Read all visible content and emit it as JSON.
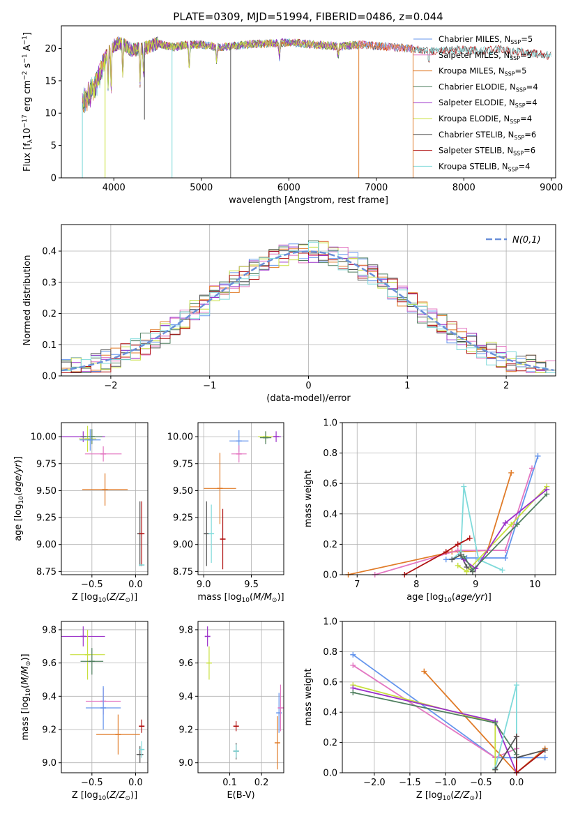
{
  "figure_title": "PLATE=0309, MJD=51994, FIBERID=0486, z=0.044",
  "colors": {
    "chabrier_miles": "#6495ed",
    "salpeter_miles": "#e377c2",
    "kroupa_miles": "#e07b28",
    "chabrier_elodie": "#4f7f5f",
    "salpeter_elodie": "#9b30c9",
    "kroupa_elodie": "#c8e040",
    "chabrier_stelib": "#555555",
    "salpeter_stelib": "#b01010",
    "kroupa_stelib": "#7fdada",
    "normal_curve": "#6a8fd8"
  },
  "chart_data": [
    {
      "id": "spectrum",
      "type": "line",
      "title": "PLATE=0309, MJD=51994, FIBERID=0486, z=0.044",
      "xlabel": "wavelength [Angstrom, rest frame]",
      "ylabel": "Flux [f_λ 10^-17 erg cm^-2 s^-1 A^-1]",
      "xlim": [
        3400,
        9050
      ],
      "ylim": [
        0,
        23.5
      ],
      "xticks": [
        "4000",
        "5000",
        "6000",
        "7000",
        "8000",
        "9000"
      ],
      "yticks": [
        "0",
        "5",
        "10",
        "15",
        "20"
      ],
      "legend_position": "right",
      "legend": [
        "Chabrier MILES, N_SSP=5",
        "Salpeter MILES, N_SSP=5",
        "Kroupa MILES, N_SSP=5",
        "Chabrier ELODIE, N_SSP=4",
        "Salpeter ELODIE, N_SSP=4",
        "Kroupa ELODIE, N_SSP=4",
        "Chabrier STELIB, N_SSP=6",
        "Salpeter STELIB, N_SSP=6",
        "Kroupa STELIB, N_SSP=4"
      ],
      "legend_labels": [
        {
          "main": "Chabrier MILES, N",
          "sub": "SSP",
          "tail": "=5"
        },
        {
          "main": "Salpeter MILES, N",
          "sub": "SSP",
          "tail": "=5"
        },
        {
          "main": "Kroupa MILES, N",
          "sub": "SSP",
          "tail": "=5"
        },
        {
          "main": "Chabrier ELODIE, N",
          "sub": "SSP",
          "tail": "=4"
        },
        {
          "main": "Salpeter ELODIE, N",
          "sub": "SSP",
          "tail": "=4"
        },
        {
          "main": "Kroupa ELODIE, N",
          "sub": "SSP",
          "tail": "=4"
        },
        {
          "main": "Chabrier STELIB, N",
          "sub": "SSP",
          "tail": "=6"
        },
        {
          "main": "Salpeter STELIB, N",
          "sub": "SSP",
          "tail": "=6"
        },
        {
          "main": "Kroupa STELIB, N",
          "sub": "SSP",
          "tail": "=4"
        }
      ],
      "continuum_x": [
        3640,
        3700,
        3800,
        3850,
        3900,
        3950,
        4000,
        4050,
        4100,
        4200,
        4300,
        4400,
        4500,
        4600,
        4700,
        4800,
        4900,
        5000,
        5200,
        5400,
        5600,
        5800,
        6000,
        6200,
        6400,
        6600,
        6800,
        7000,
        7200,
        7400,
        7600,
        7800,
        8000,
        8200,
        8400,
        8600,
        8800,
        9000
      ],
      "continuum_y": [
        11.5,
        12.5,
        14.5,
        16.5,
        18.5,
        19.5,
        20.5,
        20.8,
        20.7,
        19.8,
        19.9,
        20.2,
        20.8,
        20.4,
        20.2,
        20.5,
        20.6,
        20.6,
        20.2,
        20.4,
        20.7,
        20.8,
        20.9,
        20.7,
        20.5,
        20.3,
        20.6,
        20.4,
        20.2,
        20.0,
        19.6,
        19.7,
        19.8,
        19.6,
        19.9,
        19.6,
        19.2,
        18.9
      ],
      "absorption_lines": [
        [
          3934,
          14.5
        ],
        [
          3969,
          13.5
        ],
        [
          4102,
          16
        ],
        [
          4300,
          14.8
        ],
        [
          4340,
          15.5
        ],
        [
          4861,
          16.5
        ],
        [
          5175,
          17.8
        ],
        [
          5893,
          18.5
        ],
        [
          6563,
          18.3
        ],
        [
          7600,
          17.5
        ],
        [
          8542,
          18
        ]
      ],
      "dropouts": [
        {
          "series": "kroupa_stelib",
          "x": 3640,
          "y_to": 0
        },
        {
          "series": "kroupa_elodie",
          "x": 3900,
          "y_to": 0
        },
        {
          "series": "kroupa_stelib",
          "x": 4665,
          "y_to": 0
        },
        {
          "series": "chabrier_stelib",
          "x": 4350,
          "y_to": 9
        },
        {
          "series": "chabrier_stelib",
          "x": 5335,
          "y_to": 0
        },
        {
          "series": "kroupa_miles",
          "x": 6800,
          "y_to": 0
        },
        {
          "series": "kroupa_miles",
          "x": 7420,
          "y_to": 0
        }
      ],
      "coverage_end": {
        "miles": 7420,
        "elodie": 6800,
        "stelib": 9000
      }
    },
    {
      "id": "residuals",
      "type": "histogram",
      "xlabel": "(data-model)/error",
      "ylabel": "Normed distribution",
      "xlim": [
        -2.5,
        2.5
      ],
      "ylim": [
        0,
        0.485
      ],
      "xticks": [
        "−2",
        "−1",
        "0",
        "1",
        "2"
      ],
      "yticks": [
        "0.0",
        "0.1",
        "0.2",
        "0.3",
        "0.4"
      ],
      "legend_position": "top-right",
      "legend": [
        "N(0,1)"
      ],
      "bin_width": 0.1,
      "curve": "normal(0,1)"
    },
    {
      "id": "age_vs_Z",
      "type": "scatter",
      "xlabel": "Z [log10(Z/Z⊙)]",
      "ylabel": "age [log10(age/yr)]",
      "xlim": [
        -0.85,
        0.14
      ],
      "ylim": [
        8.72,
        10.13
      ],
      "xticks": [
        "−0.5",
        "0.0"
      ],
      "xtick_values": [
        -0.5,
        0.0
      ],
      "yticks": [
        "8.75",
        "9.00",
        "9.25",
        "9.50",
        "9.75",
        "10.00"
      ],
      "ytick_values": [
        8.75,
        9.0,
        9.25,
        9.5,
        9.75,
        10.0
      ],
      "points": [
        {
          "series": "salpeter_elodie",
          "x": -0.6,
          "y": 10.0,
          "xerr": 0.25,
          "yerr": 0.05
        },
        {
          "series": "kroupa_elodie",
          "x": -0.55,
          "y": 9.98,
          "xerr": 0.1,
          "yerr": 0.12
        },
        {
          "series": "chabrier_elodie",
          "x": -0.5,
          "y": 10.0,
          "xerr": 0.12,
          "yerr": 0.07
        },
        {
          "series": "chabrier_miles",
          "x": -0.52,
          "y": 9.97,
          "xerr": 0.12,
          "yerr": 0.1
        },
        {
          "series": "salpeter_miles",
          "x": -0.37,
          "y": 9.84,
          "xerr": 0.21,
          "yerr": 0.07
        },
        {
          "series": "kroupa_miles",
          "x": -0.35,
          "y": 9.51,
          "xerr": 0.26,
          "yerr": 0.15
        },
        {
          "series": "chabrier_stelib",
          "x": 0.05,
          "y": 9.1,
          "xerr": 0.0,
          "yerr": 0.3
        },
        {
          "series": "salpeter_stelib",
          "x": 0.07,
          "y": 9.1,
          "xerr": 0.0,
          "yerr": 0.3
        },
        {
          "series": "kroupa_stelib",
          "x": 0.07,
          "y": 8.81,
          "xerr": 0.03,
          "yerr": 0.0
        }
      ]
    },
    {
      "id": "age_vs_mass",
      "type": "scatter",
      "xlabel": "mass [log10(M/M⊙)]",
      "ylabel": "",
      "xlim": [
        8.94,
        9.84
      ],
      "ylim": [
        8.72,
        10.13
      ],
      "xticks": [
        "9.0",
        "9.5"
      ],
      "xtick_values": [
        9.0,
        9.5
      ],
      "yticks": [
        "8.75",
        "9.00",
        "9.25",
        "9.50",
        "9.75",
        "10.00"
      ],
      "ytick_values": [
        8.75,
        9.0,
        9.25,
        9.5,
        9.75,
        10.0
      ],
      "points": [
        {
          "series": "salpeter_elodie",
          "x": 9.76,
          "y": 10.0,
          "xerr": 0.05,
          "yerr": 0.05
        },
        {
          "series": "kroupa_elodie",
          "x": 9.65,
          "y": 10.0,
          "xerr": 0.08,
          "yerr": 0.05
        },
        {
          "series": "chabrier_elodie",
          "x": 9.65,
          "y": 9.99,
          "xerr": 0.06,
          "yerr": 0.06
        },
        {
          "series": "chabrier_miles",
          "x": 9.37,
          "y": 9.96,
          "xerr": 0.1,
          "yerr": 0.1
        },
        {
          "series": "salpeter_miles",
          "x": 9.37,
          "y": 9.84,
          "xerr": 0.08,
          "yerr": 0.08
        },
        {
          "series": "kroupa_miles",
          "x": 9.17,
          "y": 9.52,
          "xerr": 0.17,
          "yerr": 0.33
        },
        {
          "series": "chabrier_stelib",
          "x": 9.03,
          "y": 9.1,
          "xerr": 0.0,
          "yerr": 0.3
        },
        {
          "series": "kroupa_stelib",
          "x": 9.08,
          "y": 9.1,
          "xerr": 0.0,
          "yerr": 0.27
        },
        {
          "series": "salpeter_stelib",
          "x": 9.2,
          "y": 9.05,
          "xerr": 0.0,
          "yerr": 0.28
        }
      ]
    },
    {
      "id": "massweight_vs_age",
      "type": "line",
      "xlabel": "age [log10(age/yr)]",
      "ylabel": "mass weight",
      "xlim": [
        6.75,
        10.35
      ],
      "ylim": [
        0,
        1.0
      ],
      "xticks": [
        "7",
        "8",
        "9",
        "10"
      ],
      "xtick_values": [
        7,
        8,
        9,
        10
      ],
      "yticks": [
        "0.0",
        "0.2",
        "0.4",
        "0.6",
        "0.8",
        "1.0"
      ],
      "ytick_values": [
        0,
        0.2,
        0.4,
        0.6,
        0.8,
        1.0
      ],
      "series": [
        {
          "key": "kroupa_miles",
          "x": [
            6.85,
            8.6,
            9.2,
            9.6
          ],
          "y": [
            0.0,
            0.15,
            0.16,
            0.67
          ]
        },
        {
          "key": "chabrier_miles",
          "x": [
            8.5,
            8.85,
            9.5,
            10.05
          ],
          "y": [
            0.1,
            0.11,
            0.11,
            0.78
          ]
        },
        {
          "key": "salpeter_miles",
          "x": [
            7.3,
            8.7,
            9.5,
            9.95
          ],
          "y": [
            0.0,
            0.16,
            0.16,
            0.7
          ]
        },
        {
          "key": "kroupa_stelib",
          "x": [
            8.6,
            8.75,
            8.8,
            9.05,
            9.45
          ],
          "y": [
            0.1,
            0.15,
            0.58,
            0.1,
            0.03
          ]
        },
        {
          "key": "salpeter_stelib",
          "x": [
            7.8,
            8.5,
            8.7,
            8.9
          ],
          "y": [
            0.0,
            0.15,
            0.2,
            0.24
          ]
        },
        {
          "key": "chabrier_stelib",
          "x": [
            8.6,
            8.75,
            8.85,
            8.95
          ],
          "y": [
            0.1,
            0.13,
            0.05,
            0.02
          ]
        },
        {
          "key": "kroupa_elodie",
          "x": [
            8.7,
            8.85,
            9.6,
            10.2
          ],
          "y": [
            0.06,
            0.02,
            0.33,
            0.58
          ]
        },
        {
          "key": "salpeter_elodie",
          "x": [
            8.8,
            9.0,
            9.5,
            10.2
          ],
          "y": [
            0.1,
            0.04,
            0.34,
            0.56
          ]
        },
        {
          "key": "chabrier_elodie",
          "x": [
            8.8,
            8.95,
            9.7,
            10.2
          ],
          "y": [
            0.12,
            0.03,
            0.33,
            0.53
          ]
        }
      ]
    },
    {
      "id": "mass_vs_Z",
      "type": "scatter",
      "xlabel": "Z [log10(Z/Z⊙)]",
      "ylabel": "mass [log10(M/M⊙)]",
      "xlim": [
        -0.85,
        0.14
      ],
      "ylim": [
        8.94,
        9.85
      ],
      "xticks": [
        "−0.5",
        "0.0"
      ],
      "xtick_values": [
        -0.5,
        0.0
      ],
      "yticks": [
        "9.0",
        "9.2",
        "9.4",
        "9.6",
        "9.8"
      ],
      "ytick_values": [
        9.0,
        9.2,
        9.4,
        9.6,
        9.8
      ],
      "points": [
        {
          "series": "salpeter_elodie",
          "x": -0.6,
          "y": 9.76,
          "xerr": 0.25,
          "yerr": 0.06
        },
        {
          "series": "kroupa_elodie",
          "x": -0.55,
          "y": 9.65,
          "xerr": 0.2,
          "yerr": 0.15
        },
        {
          "series": "chabrier_elodie",
          "x": -0.5,
          "y": 9.61,
          "xerr": 0.13,
          "yerr": 0.08
        },
        {
          "series": "salpeter_miles",
          "x": -0.37,
          "y": 9.37,
          "xerr": 0.2,
          "yerr": 0.08
        },
        {
          "series": "chabrier_miles",
          "x": -0.37,
          "y": 9.33,
          "xerr": 0.2,
          "yerr": 0.13
        },
        {
          "series": "kroupa_miles",
          "x": -0.2,
          "y": 9.17,
          "xerr": 0.25,
          "yerr": 0.12
        },
        {
          "series": "salpeter_stelib",
          "x": 0.07,
          "y": 9.22,
          "xerr": 0.0,
          "yerr": 0.04
        },
        {
          "series": "chabrier_stelib",
          "x": 0.05,
          "y": 9.05,
          "xerr": 0.04,
          "yerr": 0.05
        },
        {
          "series": "kroupa_stelib",
          "x": 0.07,
          "y": 9.08,
          "xerr": 0.02,
          "yerr": 0.05
        }
      ]
    },
    {
      "id": "mass_vs_ebv",
      "type": "scatter",
      "xlabel": "E(B-V)",
      "ylabel": "",
      "xlim": [
        0.0,
        0.27
      ],
      "ylim": [
        8.94,
        9.85
      ],
      "xticks": [
        "0.1",
        "0.2"
      ],
      "xtick_values": [
        0.1,
        0.2
      ],
      "yticks": [
        "9.0",
        "9.2",
        "9.4",
        "9.6",
        "9.8"
      ],
      "ytick_values": [
        9.0,
        9.2,
        9.4,
        9.6,
        9.8
      ],
      "points": [
        {
          "series": "salpeter_elodie",
          "x": 0.03,
          "y": 9.76,
          "xerr": 0.0,
          "yerr": 0.06
        },
        {
          "series": "kroupa_elodie",
          "x": 0.035,
          "y": 9.6,
          "xerr": 0.0,
          "yerr": 0.1
        },
        {
          "series": "salpeter_stelib",
          "x": 0.12,
          "y": 9.22,
          "xerr": 0.0,
          "yerr": 0.03
        },
        {
          "series": "chabrier_stelib",
          "x": 0.12,
          "y": 9.07,
          "xerr": 0.0,
          "yerr": 0.05
        },
        {
          "series": "kroupa_stelib",
          "x": 0.12,
          "y": 9.07,
          "xerr": 0.0,
          "yerr": 0.04
        },
        {
          "series": "kroupa_miles",
          "x": 0.25,
          "y": 9.12,
          "xerr": 0.0,
          "yerr": 0.16
        },
        {
          "series": "chabrier_miles",
          "x": 0.255,
          "y": 9.3,
          "xerr": 0.0,
          "yerr": 0.12
        },
        {
          "series": "salpeter_miles",
          "x": 0.26,
          "y": 9.33,
          "xerr": 0.0,
          "yerr": 0.14
        }
      ]
    },
    {
      "id": "massweight_vs_Z",
      "type": "line",
      "xlabel": "Z [log10(Z/Z⊙)]",
      "ylabel": "mass weight",
      "xlim": [
        -2.45,
        0.55
      ],
      "ylim": [
        0,
        1.0
      ],
      "xticks": [
        "−2.0",
        "−1.5",
        "−1.0",
        "−0.5",
        "0.0"
      ],
      "xtick_values": [
        -2.0,
        -1.5,
        -1.0,
        -0.5,
        0.0
      ],
      "yticks": [
        "0.0",
        "0.2",
        "0.4",
        "0.6",
        "0.8",
        "1.0"
      ],
      "ytick_values": [
        0,
        0.2,
        0.4,
        0.6,
        0.8,
        1.0
      ],
      "series": [
        {
          "key": "chabrier_miles",
          "x": [
            -2.3,
            -0.3,
            0.4
          ],
          "y": [
            0.78,
            0.1,
            0.1
          ]
        },
        {
          "key": "salpeter_miles",
          "x": [
            -2.3,
            -0.3,
            0.0
          ],
          "y": [
            0.71,
            0.1,
            0.16
          ]
        },
        {
          "key": "kroupa_miles",
          "x": [
            -1.3,
            0.0,
            0.4
          ],
          "y": [
            0.67,
            0.0,
            0.16
          ]
        },
        {
          "key": "kroupa_elodie",
          "x": [
            -2.3,
            -0.3,
            -0.3
          ],
          "y": [
            0.58,
            0.33,
            0.02
          ]
        },
        {
          "key": "salpeter_elodie",
          "x": [
            -2.3,
            -0.3,
            0.0
          ],
          "y": [
            0.56,
            0.34,
            0.0
          ]
        },
        {
          "key": "chabrier_elodie",
          "x": [
            -2.3,
            -0.3,
            0.0
          ],
          "y": [
            0.53,
            0.33,
            0.12
          ]
        },
        {
          "key": "kroupa_stelib",
          "x": [
            -0.3,
            0.0,
            0.0,
            0.4
          ],
          "y": [
            0.03,
            0.58,
            0.0,
            0.15
          ]
        },
        {
          "key": "salpeter_stelib",
          "x": [
            0.0,
            0.0,
            0.4
          ],
          "y": [
            0.24,
            0.0,
            0.15
          ]
        },
        {
          "key": "chabrier_stelib",
          "x": [
            -0.3,
            0.0,
            0.0,
            0.4
          ],
          "y": [
            0.02,
            0.24,
            0.1,
            0.15
          ]
        }
      ]
    }
  ]
}
